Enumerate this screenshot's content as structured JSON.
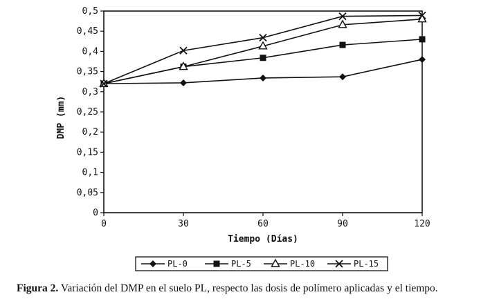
{
  "caption": {
    "label": "Figura 2.",
    "text": " Variación del DMP en el suelo PL, respecto las dosis de polímero aplicadas y el tiempo."
  },
  "chart_data": {
    "type": "line",
    "xlabel": "Tiempo (Días)",
    "ylabel": "DMP (mm)",
    "x": [
      0,
      30,
      60,
      90,
      120
    ],
    "x_tick_labels": [
      "0",
      "30",
      "60",
      "90",
      "120"
    ],
    "xlim": [
      0,
      120
    ],
    "ylim": [
      0,
      0.5
    ],
    "y_tick_labels": [
      "0",
      "0,05",
      "0,1",
      "0,15",
      "0,2",
      "0,25",
      "0,3",
      "0,35",
      "0,4",
      "0,45",
      "0,5"
    ],
    "grid": false,
    "legend_position": "bottom",
    "series": [
      {
        "name": "PL-0",
        "marker": "diamond",
        "values": [
          0.32,
          0.322,
          0.334,
          0.337,
          0.38
        ]
      },
      {
        "name": "PL-5",
        "marker": "square",
        "values": [
          0.32,
          0.362,
          0.384,
          0.416,
          0.43
        ]
      },
      {
        "name": "PL-10",
        "marker": "triangle",
        "values": [
          0.32,
          0.362,
          0.413,
          0.466,
          0.48
        ]
      },
      {
        "name": "PL-15",
        "marker": "x",
        "values": [
          0.32,
          0.402,
          0.434,
          0.487,
          0.489
        ]
      }
    ]
  }
}
